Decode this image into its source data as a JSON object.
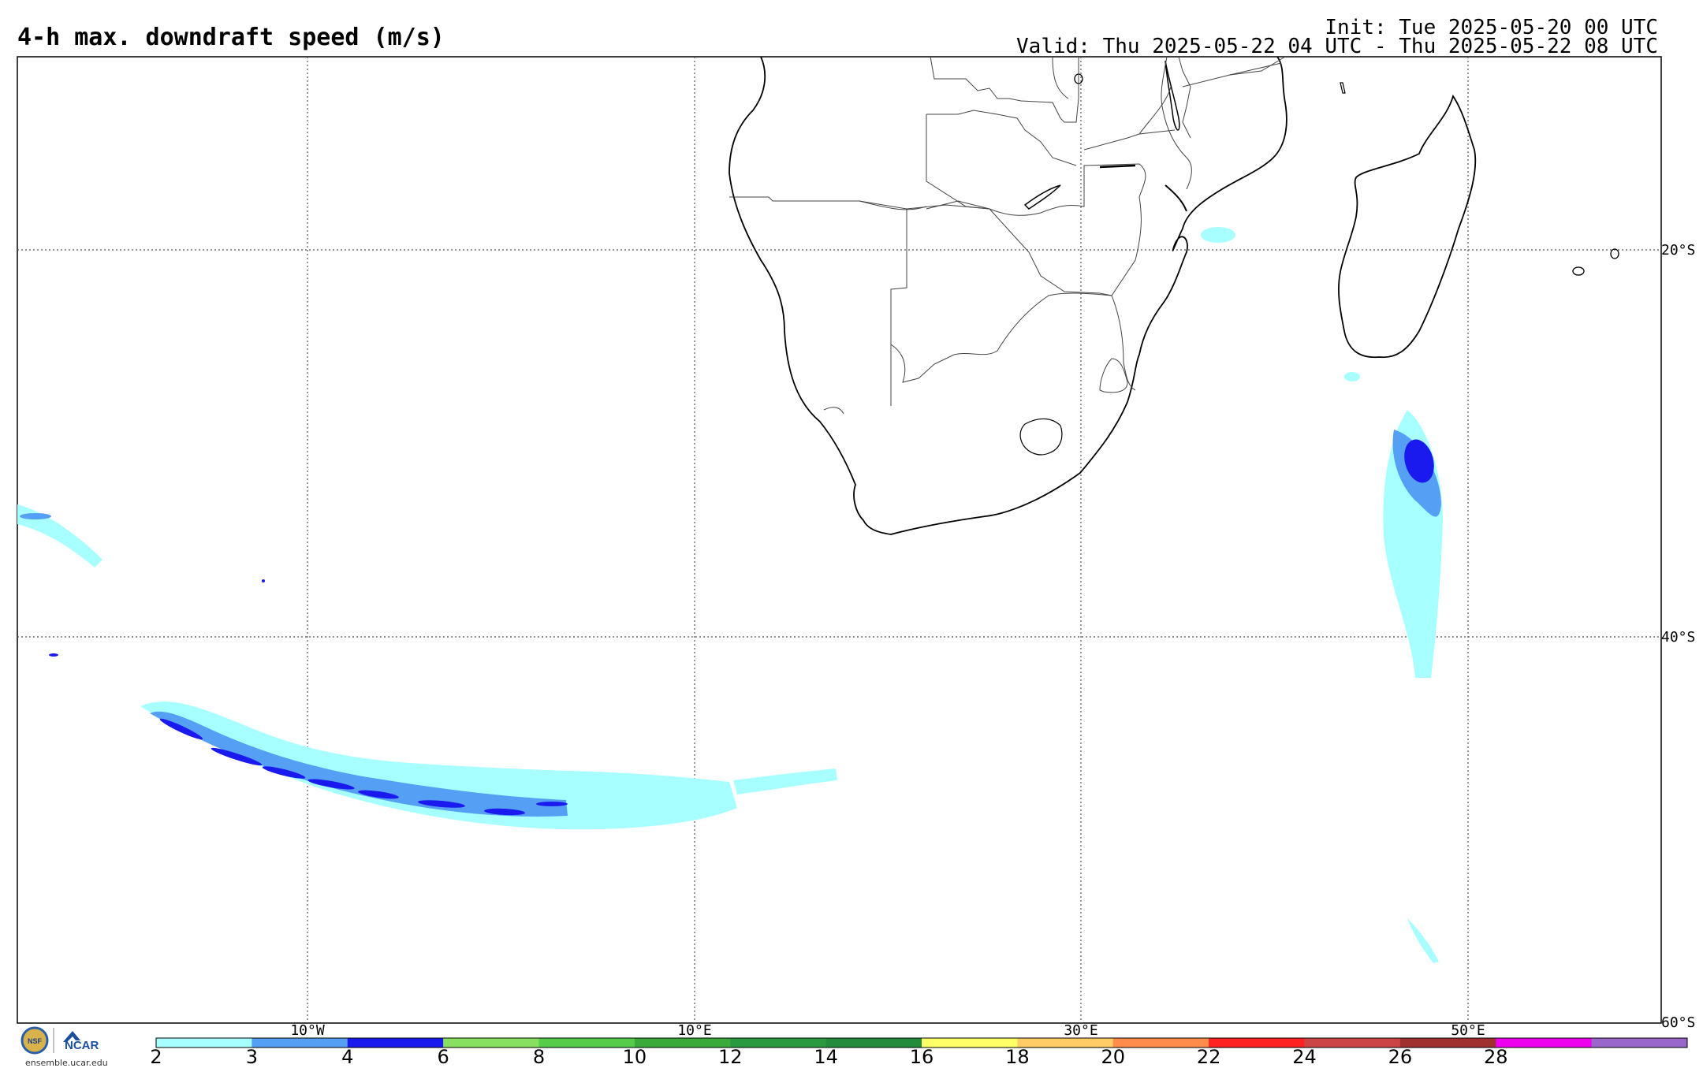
{
  "header": {
    "title": "4-h max. downdraft speed (m/s)",
    "init": "Init: Tue 2025-05-20 00 UTC",
    "valid": "Valid: Thu 2025-05-22 04 UTC - Thu 2025-05-22 08 UTC"
  },
  "map": {
    "lon_labels": [
      "10°W",
      "10°E",
      "30°E",
      "50°E"
    ],
    "lat_labels": [
      "20°S",
      "40°S",
      "60°S"
    ]
  },
  "colorbar": {
    "ticks": [
      "2",
      "3",
      "4",
      "6",
      "8",
      "10",
      "12",
      "14",
      "16",
      "18",
      "20",
      "22",
      "24",
      "26",
      "28"
    ],
    "colors": [
      "#a8ffff",
      "#55a0f5",
      "#1a1aee",
      "#88e060",
      "#55cc4a",
      "#3aaa3a",
      "#2a9a40",
      "#228b3c",
      "#ffff66",
      "#ffcc66",
      "#ff8c4a",
      "#ff2222",
      "#cc4444",
      "#a03030",
      "#ee00ee",
      "#9966cc"
    ]
  },
  "logo": {
    "nsf": "NSF",
    "ncar": "NCAR",
    "url": "ensemble.ucar.edu"
  }
}
